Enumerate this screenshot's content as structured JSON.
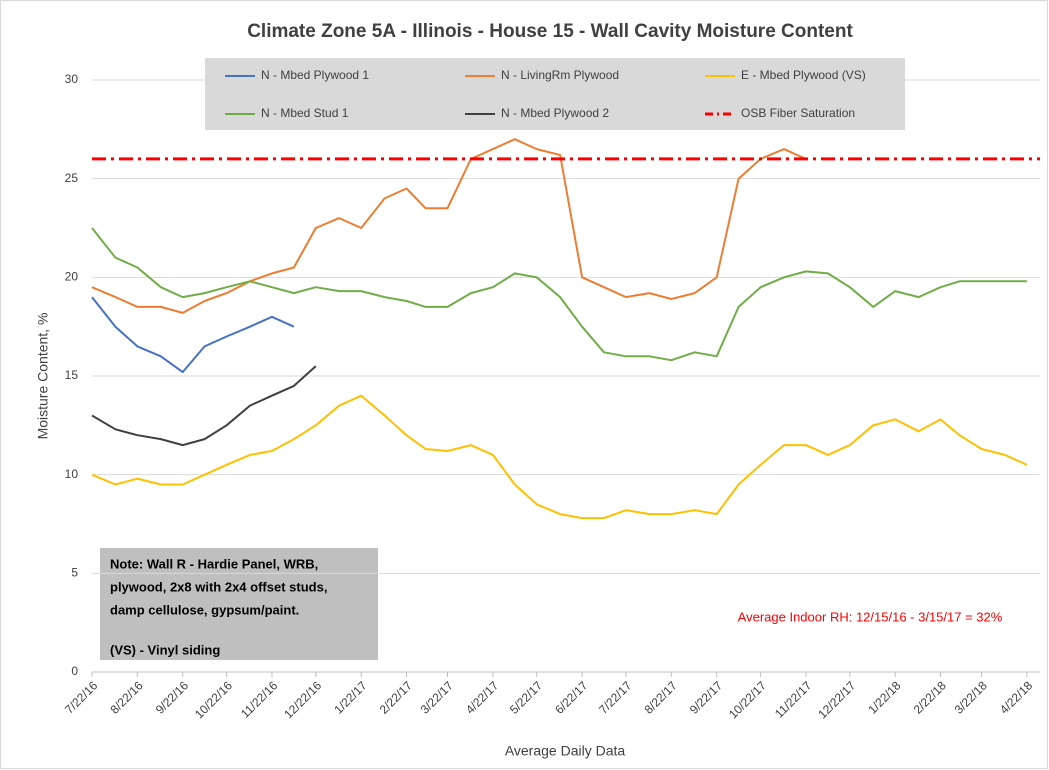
{
  "chart_data": {
    "type": "line",
    "title": "Climate Zone 5A - Illinois - House 15 - Wall Cavity Moisture Content",
    "y_label": "Moisture Content, %",
    "x_label": "Average Daily Data",
    "x": [
      "7/22/16",
      "8/7/16",
      "8/22/16",
      "9/7/16",
      "9/22/16",
      "10/7/16",
      "10/22/16",
      "11/7/16",
      "11/22/16",
      "12/7/16",
      "12/22/16",
      "1/7/17",
      "1/22/17",
      "2/7/17",
      "2/22/17",
      "3/7/17",
      "3/22/17",
      "4/7/17",
      "4/22/17",
      "5/7/17",
      "5/22/17",
      "6/7/17",
      "6/22/17",
      "7/7/17",
      "7/22/17",
      "8/7/17",
      "8/22/17",
      "9/7/17",
      "9/22/17",
      "10/7/17",
      "10/22/17",
      "11/7/17",
      "11/22/17",
      "12/7/17",
      "12/22/17",
      "1/7/18",
      "1/22/18",
      "2/7/18",
      "2/22/18",
      "3/7/18",
      "3/22/18",
      "4/7/18",
      "4/22/18"
    ],
    "xlim": [
      "7/22/16",
      "5/1/18"
    ],
    "xticks": [
      "7/22/16",
      "8/22/16",
      "9/22/16",
      "10/22/16",
      "11/22/16",
      "12/22/16",
      "1/22/17",
      "2/22/17",
      "3/22/17",
      "4/22/17",
      "5/22/17",
      "6/22/17",
      "7/22/17",
      "8/22/17",
      "9/22/17",
      "10/22/17",
      "11/22/17",
      "12/22/17",
      "1/22/18",
      "2/22/18",
      "3/22/18",
      "4/22/18"
    ],
    "ylim": [
      0,
      30
    ],
    "yticks": [
      0,
      5,
      10,
      15,
      20,
      25,
      30
    ],
    "grid": true,
    "series": [
      {
        "name": "N - Mbed Plywood 1",
        "color": "#4472c4",
        "values": [
          19,
          17.5,
          16.5,
          16,
          15.2,
          16.5,
          17,
          17.5,
          18,
          17.5,
          null,
          null,
          null,
          null,
          null,
          null,
          null,
          null,
          null,
          null,
          null,
          null,
          null,
          null,
          null,
          null,
          null,
          null,
          null,
          null,
          null,
          null,
          null,
          null,
          null,
          null,
          null,
          null,
          null,
          null,
          null,
          null,
          null
        ]
      },
      {
        "name": "N - LivingRm Plywood",
        "color": "#ed7d31",
        "values": [
          19.5,
          19,
          18.5,
          18.5,
          18.2,
          18.8,
          19.2,
          19.8,
          20.2,
          20.5,
          22.5,
          23,
          22.5,
          24,
          24.5,
          23.5,
          23.5,
          26,
          26.5,
          27,
          26.5,
          26.2,
          20,
          19.5,
          19,
          19.2,
          18.9,
          19.2,
          20,
          25,
          26,
          26.5,
          26,
          null,
          null,
          null,
          null,
          null,
          null,
          null,
          null,
          null,
          null
        ]
      },
      {
        "name": "E - Mbed Plywood (VS)",
        "color": "#ffc000",
        "values": [
          10,
          9.5,
          9.8,
          9.5,
          9.5,
          10,
          10.5,
          11,
          11.2,
          11.8,
          12.5,
          13.5,
          14,
          13,
          12,
          11.3,
          11.2,
          11.5,
          11,
          9.5,
          8.5,
          8,
          7.8,
          7.8,
          8.2,
          8,
          8,
          8.2,
          8,
          9.5,
          10.5,
          11.5,
          11.5,
          11,
          11.5,
          12.5,
          12.8,
          12.2,
          12.8,
          12,
          11.3,
          11,
          10.5
        ]
      },
      {
        "name": "N - Mbed Stud 1",
        "color": "#70ad47",
        "values": [
          22.5,
          21,
          20.5,
          19.5,
          19,
          19.2,
          19.5,
          19.8,
          19.5,
          19.2,
          19.5,
          19.3,
          19.3,
          19,
          18.8,
          18.5,
          18.5,
          19.2,
          19.5,
          20.2,
          20,
          19,
          17.5,
          16.2,
          16,
          16,
          15.8,
          16.2,
          16,
          18.5,
          19.5,
          20,
          20.3,
          20.2,
          19.5,
          18.5,
          19.3,
          19,
          19.5,
          19.8,
          19.8,
          19.8,
          19.8
        ]
      },
      {
        "name": "N - Mbed Plywood 2",
        "color": "#404040",
        "values": [
          13,
          12.3,
          12,
          11.8,
          11.5,
          11.8,
          12.5,
          13.5,
          14,
          14.5,
          15.5,
          null,
          null,
          null,
          null,
          null,
          null,
          null,
          null,
          null,
          null,
          null,
          null,
          null,
          null,
          null,
          null,
          null,
          null,
          null,
          null,
          null,
          null,
          null,
          null,
          null,
          null,
          null,
          null,
          null,
          null,
          null,
          null
        ]
      }
    ],
    "hlines": [
      {
        "name": "OSB Fiber Saturation",
        "color": "#ff0000",
        "value": 26
      }
    ],
    "annotations": {
      "note": [
        "Note: Wall R - Hardie Panel, WRB,",
        "plywood, 2x8 with 2x4 offset studs,",
        "damp cellulose, gypsum/paint.",
        "(VS) - Vinyl siding"
      ],
      "rh": "Average Indoor RH: 12/15/16 - 3/15/17 = 32%"
    }
  }
}
